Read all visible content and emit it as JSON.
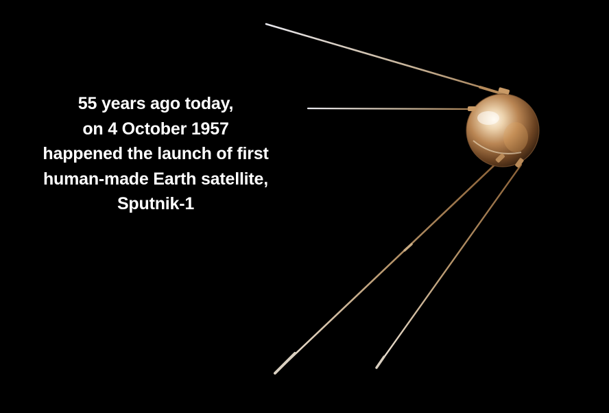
{
  "caption": {
    "lines": [
      "55 years ago today,",
      "on 4 October 1957",
      "happened the launch of first",
      "human-made Earth satellite,",
      "Sputnik-1"
    ]
  },
  "colors": {
    "background": "#000000",
    "text": "#ffffff",
    "sphere_highlight": "#f3e6cf",
    "sphere_mid": "#b7895a",
    "sphere_dark": "#3a2412",
    "antenna": "#c9b79a"
  }
}
